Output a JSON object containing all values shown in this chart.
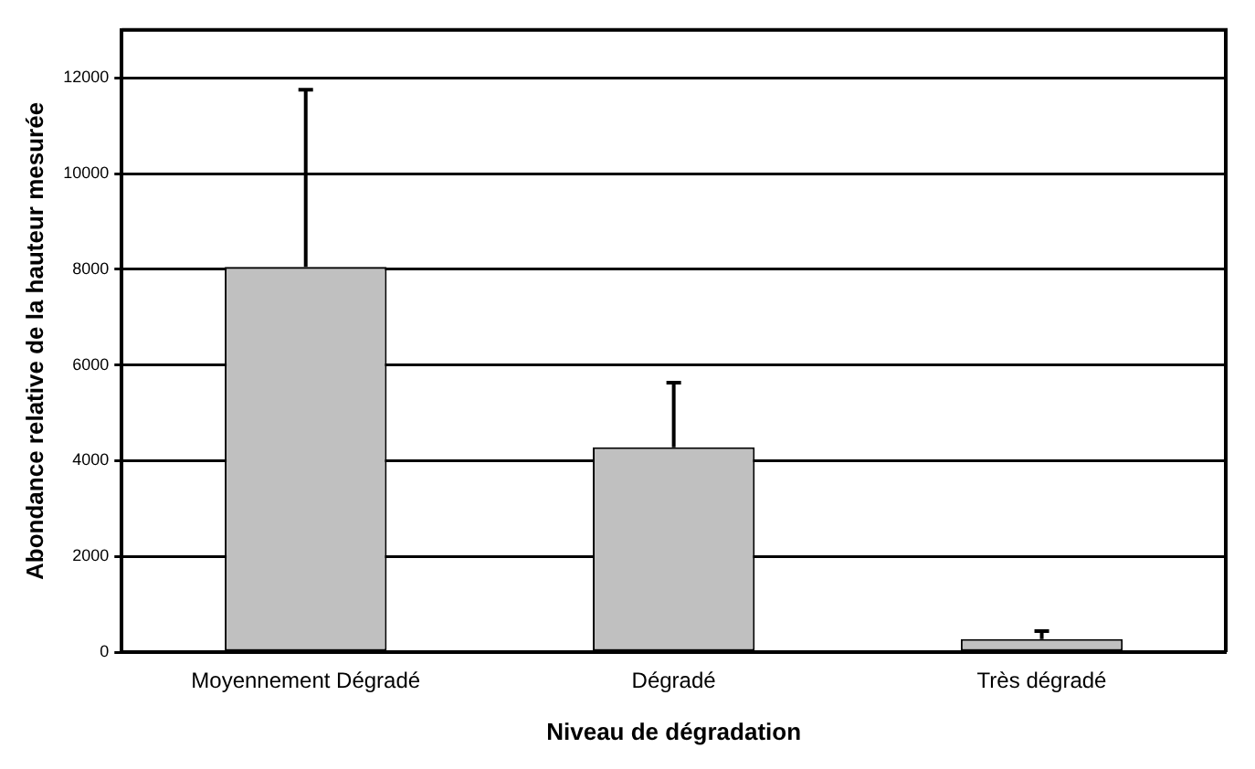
{
  "chart_data": {
    "type": "bar",
    "xlabel": "Niveau de dégradation",
    "ylabel": "Abondance relative de la hauteur mesurée",
    "categories": [
      "Moyennement Dégradé",
      "Dégradé",
      "Très dégradé"
    ],
    "values": [
      8050,
      4280,
      270
    ],
    "errors": [
      [
        8050,
        11750
      ],
      [
        4280,
        5630
      ],
      [
        270,
        440
      ]
    ],
    "color": "#c0c0c0",
    "ylim": [
      0,
      13000
    ],
    "yticks": [
      0,
      2000,
      4000,
      6000,
      8000,
      10000,
      12000
    ],
    "grid": "y",
    "legend": false
  }
}
